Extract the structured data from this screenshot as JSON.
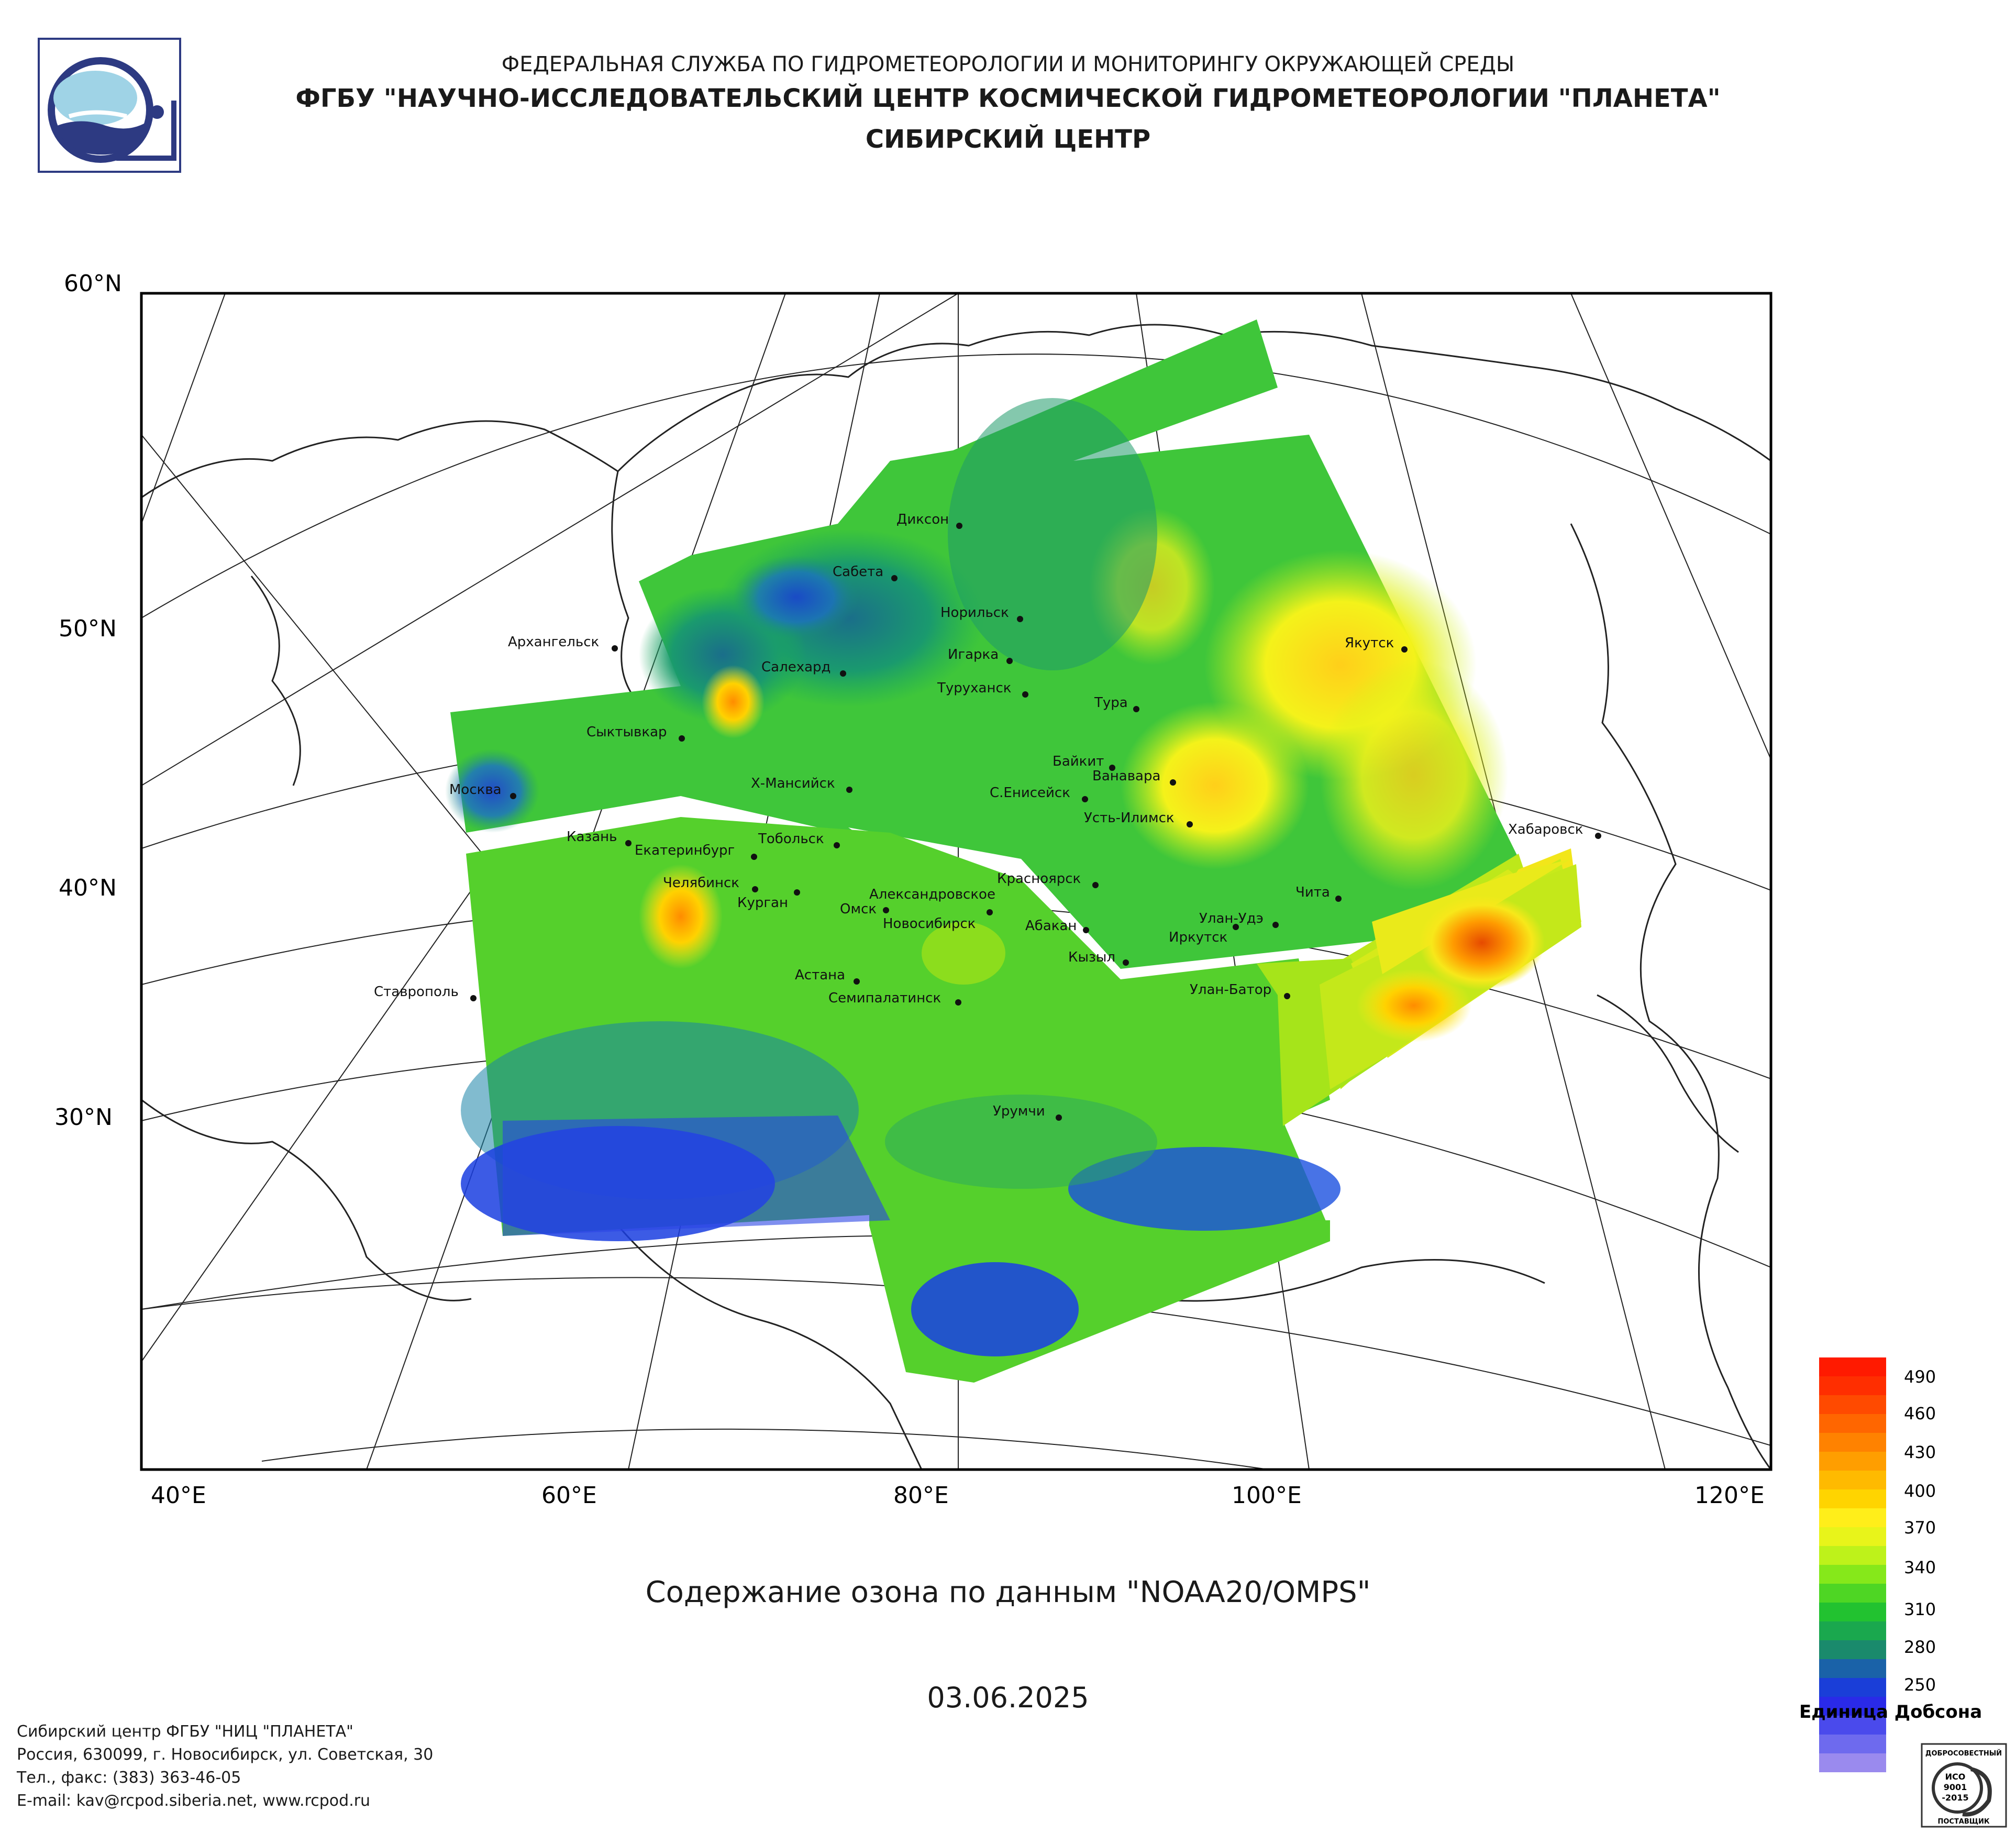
{
  "header": {
    "line1": "ФЕДЕРАЛЬНАЯ СЛУЖБА ПО ГИДРОМЕТЕОРОЛОГИИ И МОНИТОРИНГУ ОКРУЖАЮЩЕЙ СРЕДЫ",
    "line2": "ФГБУ \"НАУЧНО-ИССЛЕДОВАТЕЛЬСКИЙ ЦЕНТР КОСМИЧЕСКОЙ ГИДРОМЕТЕОРОЛОГИИ \"ПЛАНЕТА\"",
    "line3": "СИБИРСКИЙ ЦЕНТР"
  },
  "map": {
    "lat_labels": [
      "60°N",
      "50°N",
      "40°N",
      "30°N"
    ],
    "lon_labels": [
      "40°E",
      "60°E",
      "80°E",
      "100°E",
      "120°E"
    ],
    "cities": [
      "Диксон",
      "Сабета",
      "Норильск",
      "Архангельск",
      "Салехард",
      "Игарка",
      "Туруханск",
      "Тура",
      "Якутск",
      "Сыктывкар",
      "Байкит",
      "Ванавара",
      "Х-Мансийск",
      "С.Енисейск",
      "Усть-Илимск",
      "Москва",
      "Казань",
      "Тобольск",
      "Екатеринбург",
      "Хабаровск",
      "Челябинск",
      "Курган",
      "Александровское",
      "Красноярск",
      "Чита",
      "Омск",
      "Новосибирск",
      "Абакан",
      "Улан-Удэ",
      "Иркутск",
      "Кызыл",
      "Астана",
      "Ставрополь",
      "Семипалатинск",
      "Улан-Батор",
      "Урумчи"
    ]
  },
  "caption": "Содержание озона по данным \"NOAA20/OMPS\"",
  "date": "03.06.2025",
  "legend": {
    "ticks": [
      "490",
      "460",
      "430",
      "400",
      "370",
      "340",
      "310",
      "280",
      "250"
    ],
    "unit": "Единица Добсона"
  },
  "footer": {
    "line1": "Сибирский центр ФГБУ \"НИЦ \"ПЛАНЕТА\"",
    "line2": "Россия, 630099, г. Новосибирск, ул. Советская, 30",
    "line3": "Тел., факс: (383) 363-46-05",
    "line4": "E-mail: kav@rcpod.siberia.net, www.rcpod.ru"
  },
  "iso_badge": [
    "ДОБРОСОВЕСТНЫЙ",
    "ИСО",
    "9001",
    "-2015",
    "ПОСТАВЩИК"
  ],
  "colors": {
    "ozone_low": "#2a2ae8",
    "ozone_mid": "#22c422",
    "ozone_high": "#f7f71a",
    "ozone_max": "#ff5a00"
  }
}
